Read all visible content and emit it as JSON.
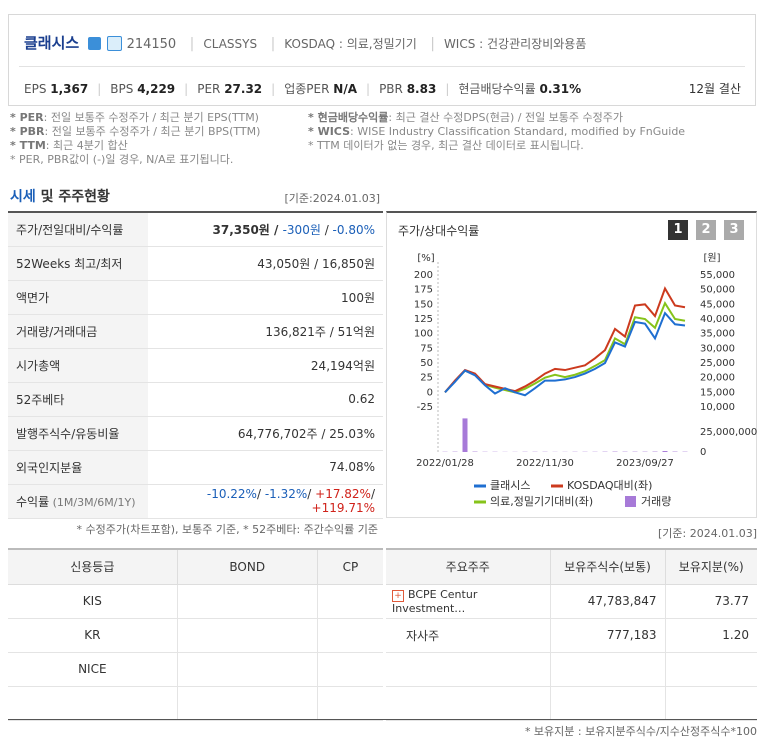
{
  "header": {
    "name": "클래시스",
    "code": "214150",
    "eng_name": "CLASSYS",
    "market": "KOSDAQ : 의료,정밀기기",
    "wics": "WICS : 건강관리장비와용품",
    "metrics": [
      {
        "label": "EPS",
        "value": "1,367"
      },
      {
        "label": "BPS",
        "value": "4,229"
      },
      {
        "label": "PER",
        "value": "27.32"
      },
      {
        "label": "업종PER",
        "value": "N/A"
      },
      {
        "label": "PBR",
        "value": "8.83"
      },
      {
        "label": "현금배당수익률",
        "value": "0.31%"
      }
    ],
    "settlement": "12월 결산"
  },
  "notes_left": [
    {
      "key": "* PER",
      "text": ": 전일 보통주 수정주가 / 최근 분기 EPS(TTM)"
    },
    {
      "key": "* PBR",
      "text": ": 전일 보통주 수정주가 / 최근 분기 BPS(TTM)"
    },
    {
      "key": "* TTM",
      "text": ": 최근 4분기 합산"
    },
    {
      "text": "* PER, PBR값이 (-)일 경우, N/A로 표기됩니다."
    }
  ],
  "notes_right": [
    {
      "key": "* 현금배당수익률",
      "text": ": 최근 결산 수정DPS(현금) / 전일 보통주 수정주가"
    },
    {
      "key": "* WICS",
      "text": ": WISE Industry Classification Standard, modified by FnGuide"
    },
    {
      "text": "* TTM 데이터가 없는 경우, 최근 결산 데이터로 표시됩니다."
    }
  ],
  "price_section": {
    "title_main": "시세",
    "title_rest": " 및 주주현황",
    "date": "[기준:2024.01.03]",
    "rows": [
      {
        "label": [
          "주가/전일대비/수익률"
        ],
        "value": [
          "37,350원 / ",
          "-300원",
          " / ",
          "-0.80%"
        ]
      },
      {
        "label": [
          "52Weeks 최고/최저"
        ],
        "value": [
          "43,050원 / 16,850원"
        ]
      },
      {
        "label": [
          "액면가"
        ],
        "value": [
          "100원"
        ]
      },
      {
        "label": [
          "거래량/거래대금"
        ],
        "value": [
          "136,821주 / 51억원"
        ]
      },
      {
        "label": [
          "시가총액"
        ],
        "value": [
          "24,194억원"
        ]
      },
      {
        "label": [
          "52주베타"
        ],
        "value": [
          "0.62"
        ]
      },
      {
        "label": [
          "발행주식수/유동비율"
        ],
        "value": [
          "64,776,702주 / 25.03%"
        ]
      },
      {
        "label": [
          "외국인지분율"
        ],
        "value": [
          "74.08%"
        ]
      },
      {
        "label": [
          "수익률",
          " (1M/3M/6M/1Y)"
        ],
        "value": [
          "-10.22%",
          "/ ",
          "-1.32%",
          "/ ",
          "+17.82%",
          "/ ",
          "+119.71%"
        ]
      }
    ],
    "footnote": "* 수정주가(차트포함), 보통주 기준, * 52주베타: 주간수익률 기준"
  },
  "chart_tabs": [
    "1",
    "2",
    "3"
  ],
  "chart_data": {
    "type": "line",
    "title": "주가/상대수익률",
    "y_label": "[%]",
    "y2_label": "[원]",
    "categories": [
      "2022/01/28",
      null,
      null,
      null,
      null,
      null,
      null,
      null,
      null,
      null,
      "2022/11/30",
      null,
      null,
      null,
      null,
      null,
      null,
      null,
      null,
      null,
      "2023/09/27",
      null,
      null,
      null,
      null
    ],
    "ylim": [
      -25,
      200
    ],
    "yticks": [
      -25,
      0,
      25,
      50,
      75,
      100,
      125,
      150,
      175,
      200
    ],
    "y2lim": [
      10000,
      55000
    ],
    "y2ticks": [
      {
        "value": 10000,
        "label": "10,000"
      },
      {
        "value": 15000,
        "label": "15,000"
      },
      {
        "value": 20000,
        "label": "20,000"
      },
      {
        "value": 25000,
        "label": "25,000"
      },
      {
        "value": 30000,
        "label": "30,000"
      },
      {
        "value": 35000,
        "label": "35,000"
      },
      {
        "value": 40000,
        "label": "40,000"
      },
      {
        "value": 45000,
        "label": "45,000"
      },
      {
        "value": 50000,
        "label": "50,000"
      },
      {
        "value": 55000,
        "label": "55,000"
      }
    ],
    "grid": false,
    "series": [
      {
        "name": "클래시스",
        "color": "#1f6fd1",
        "values": [
          0,
          18,
          37,
          29,
          12,
          -2,
          7,
          0,
          -5,
          7,
          20,
          20,
          22,
          26,
          32,
          40,
          50,
          85,
          78,
          120,
          117,
          92,
          135,
          116,
          114
        ]
      },
      {
        "name": "KOSDAQ대비(좌)",
        "color": "#cc3a1e",
        "values": [
          0,
          20,
          38,
          32,
          14,
          10,
          6,
          2,
          10,
          20,
          32,
          40,
          38,
          42,
          46,
          58,
          72,
          108,
          95,
          148,
          150,
          130,
          177,
          148,
          145
        ]
      },
      {
        "name": "의료,정밀기기대비(좌)",
        "color": "#86c31a",
        "values": [
          0,
          19,
          37,
          30,
          13,
          8,
          4,
          0,
          6,
          15,
          25,
          30,
          26,
          30,
          36,
          45,
          55,
          92,
          82,
          128,
          125,
          110,
          152,
          125,
          122
        ]
      }
    ],
    "volume": {
      "name": "거래량",
      "color": "#a77ad8",
      "values": [
        300000,
        400000,
        42000000,
        500000,
        300000,
        300000,
        200000,
        200000,
        300000,
        300000,
        300000,
        200000,
        200000,
        300000,
        300000,
        300000,
        400000,
        500000,
        400000,
        400000,
        400000,
        500000,
        1200000,
        500000,
        400000
      ],
      "ylim": [
        0,
        42500000
      ],
      "yticks": [
        0,
        {
          "value": 25000000,
          "label": "25,000,000"
        }
      ]
    }
  },
  "chart_date": "[기준: 2024.01.03]",
  "credit_table": {
    "columns": [
      "신용등급",
      "BOND",
      "CP"
    ],
    "rows": [
      "KIS",
      "KR",
      "NICE"
    ]
  },
  "holder_table": {
    "columns": [
      "주요주주",
      "보유주식수(보통)",
      "보유지분(%)"
    ],
    "rows": [
      [
        "BCPE Centur Investment…",
        "47,783,847",
        "73.77"
      ],
      [
        "자사주",
        "777,183",
        "1.20"
      ]
    ],
    "footnote": "* 보유지분 : 보유지분주식수/지수산정주식수*100"
  }
}
